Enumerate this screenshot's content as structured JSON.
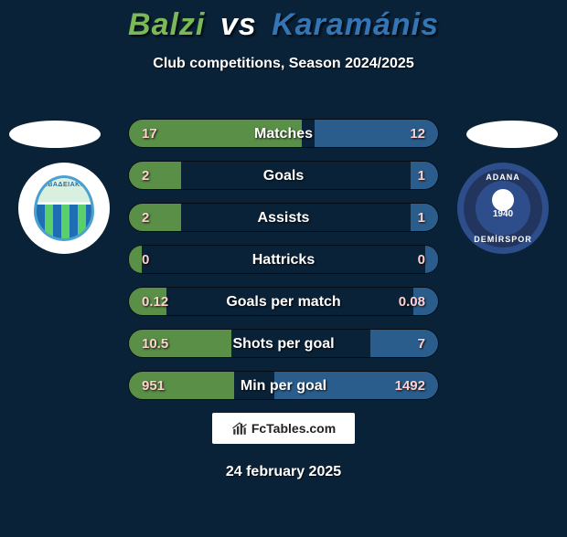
{
  "header": {
    "player1": "Balzi",
    "vs": "vs",
    "player2": "Karamánis",
    "title_color_p1": "#7ab957",
    "title_color_vs": "#ffffff",
    "title_color_p2": "#3476b5",
    "subtitle": "Club competitions, Season 2024/2025"
  },
  "crest_left": {
    "arc_text": "ΛΕΒΑΔΕΙΑΚΟΣ"
  },
  "crest_right": {
    "top_text": "ADANA",
    "bot_text": "DEMİRSPOR",
    "year": "1940"
  },
  "colors": {
    "left_fill": "#5a8f47",
    "right_fill": "#2b5d8c",
    "row_bg": "#0a2238"
  },
  "rows": [
    {
      "label": "Matches",
      "left": "17",
      "right": "12",
      "left_pct": 56,
      "right_pct": 40
    },
    {
      "label": "Goals",
      "left": "2",
      "right": "1",
      "left_pct": 17,
      "right_pct": 9
    },
    {
      "label": "Assists",
      "left": "2",
      "right": "1",
      "left_pct": 17,
      "right_pct": 9
    },
    {
      "label": "Hattricks",
      "left": "0",
      "right": "0",
      "left_pct": 4,
      "right_pct": 4
    },
    {
      "label": "Goals per match",
      "left": "0.12",
      "right": "0.08",
      "left_pct": 12,
      "right_pct": 8
    },
    {
      "label": "Shots per goal",
      "left": "10.5",
      "right": "7",
      "left_pct": 33,
      "right_pct": 22
    },
    {
      "label": "Min per goal",
      "left": "951",
      "right": "1492",
      "left_pct": 34,
      "right_pct": 53
    }
  ],
  "brand": {
    "text": "FcTables.com"
  },
  "footer": {
    "date": "24 february 2025"
  }
}
